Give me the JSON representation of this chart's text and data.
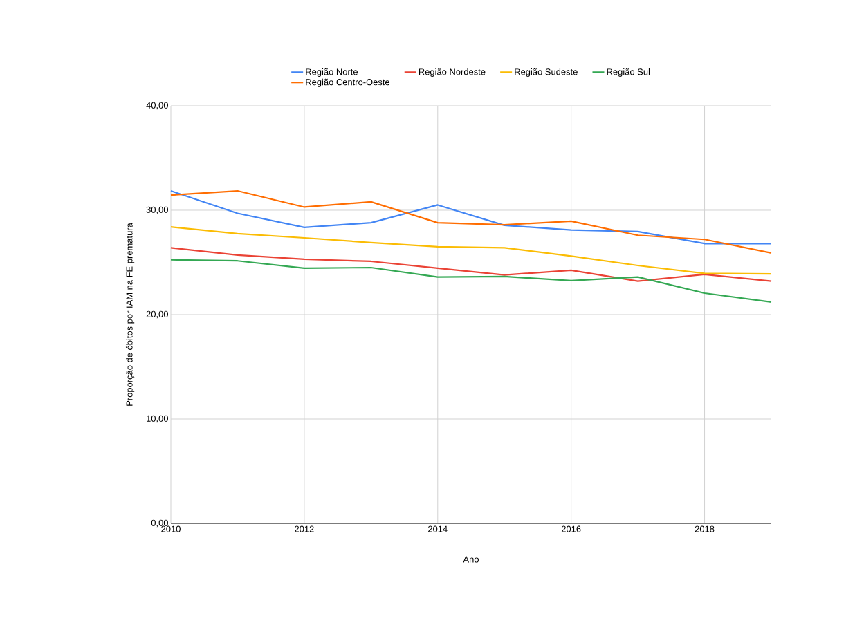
{
  "chart_data": {
    "type": "line",
    "xlabel": "Ano",
    "ylabel": "Proporção de óbitos por IAM na FE prematura",
    "x": [
      2010,
      2011,
      2012,
      2013,
      2014,
      2015,
      2016,
      2017,
      2018,
      2019
    ],
    "series": [
      {
        "name": "Região Norte",
        "color": "#4285f4",
        "values": [
          31.85,
          29.7,
          28.35,
          28.8,
          30.5,
          28.55,
          28.1,
          27.95,
          26.8,
          26.8
        ]
      },
      {
        "name": "Região Nordeste",
        "color": "#ea4335",
        "values": [
          26.4,
          25.7,
          25.3,
          25.1,
          24.45,
          23.8,
          24.25,
          23.2,
          23.85,
          23.2
        ]
      },
      {
        "name": "Região Sudeste",
        "color": "#fbbc04",
        "values": [
          28.4,
          27.75,
          27.35,
          26.9,
          26.5,
          26.4,
          25.6,
          24.7,
          23.95,
          23.9
        ]
      },
      {
        "name": "Região Sul",
        "color": "#34a853",
        "values": [
          25.25,
          25.15,
          24.45,
          24.5,
          23.6,
          23.65,
          23.25,
          23.6,
          22.05,
          21.2
        ]
      },
      {
        "name": "Região Centro-Oeste",
        "color": "#ff6d01",
        "values": [
          31.45,
          31.85,
          30.3,
          30.8,
          28.8,
          28.6,
          28.95,
          27.6,
          27.2,
          25.9
        ]
      }
    ],
    "xlim": [
      2010,
      2019
    ],
    "xticks": [
      2010,
      2012,
      2014,
      2016,
      2018
    ],
    "ylim": [
      0,
      40
    ],
    "yticks": [
      {
        "value": 0,
        "label": "0,00"
      },
      {
        "value": 10,
        "label": "10,00"
      },
      {
        "value": 20,
        "label": "20,00"
      },
      {
        "value": 30,
        "label": "30,00"
      },
      {
        "value": 40,
        "label": "40,00"
      }
    ],
    "grid": true,
    "legend": "top",
    "marker": "none",
    "line_style": "solid"
  }
}
